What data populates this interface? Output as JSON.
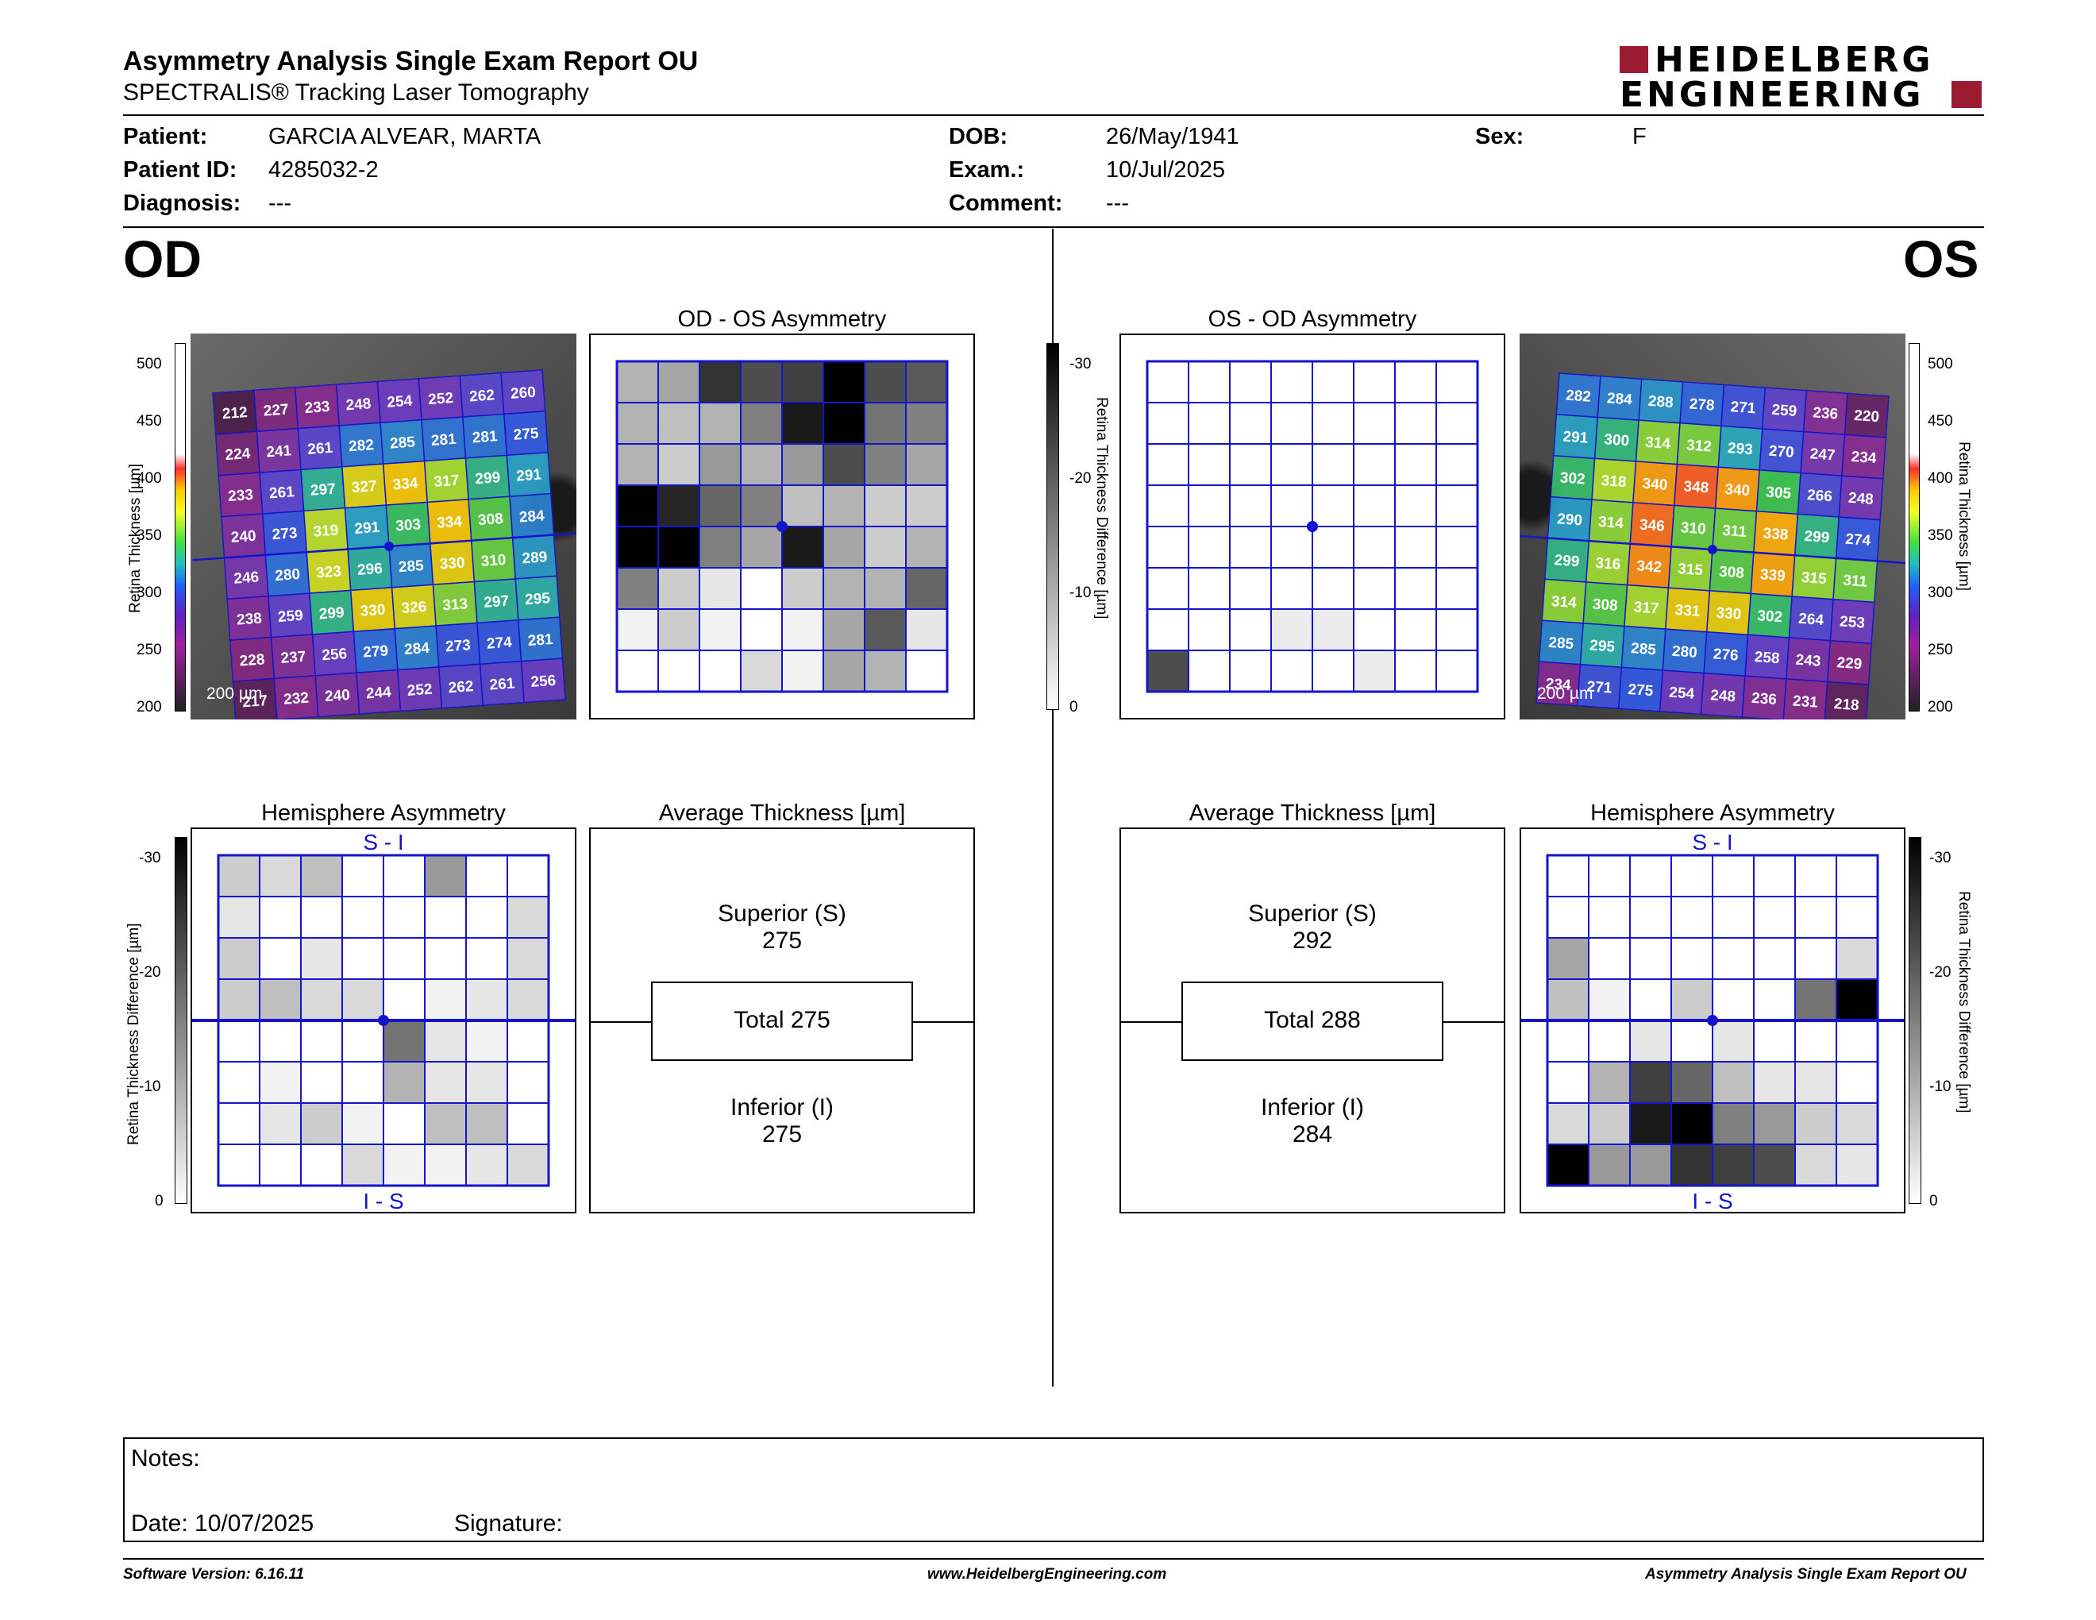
{
  "header": {
    "title": "Asymmetry Analysis Single Exam Report OU",
    "subtitle": "SPECTRALIS® Tracking Laser Tomography",
    "logo_line1": "HEIDELBERG",
    "logo_line2": "ENGINEERING"
  },
  "patient": {
    "patient_label": "Patient:",
    "patient_value": "GARCIA ALVEAR, MARTA",
    "id_label": "Patient ID:",
    "id_value": "4285032-2",
    "diagnosis_label": "Diagnosis:",
    "diagnosis_value": "---",
    "dob_label": "DOB:",
    "dob_value": "26/May/1941",
    "exam_label": "Exam.:",
    "exam_value": "10/Jul/2025",
    "comment_label": "Comment:",
    "comment_value": "---",
    "sex_label": "Sex:",
    "sex_value": "F"
  },
  "od": {
    "eye": "OD",
    "asym_title": "OD - OS Asymmetry",
    "hemi_title": "Hemisphere Asymmetry",
    "avg_title": "Average Thickness [µm]",
    "superior_label": "Superior (S)",
    "superior_value": "275",
    "total_label": "Total 275",
    "inferior_label": "Inferior (I)",
    "inferior_value": "275",
    "scale_bar": "200 µm",
    "thickness_grid": [
      [
        212,
        227,
        233,
        248,
        254,
        252,
        262,
        260
      ],
      [
        224,
        241,
        261,
        282,
        285,
        281,
        281,
        275
      ],
      [
        233,
        261,
        297,
        327,
        334,
        317,
        299,
        291
      ],
      [
        240,
        273,
        319,
        291,
        303,
        334,
        308,
        284
      ],
      [
        246,
        280,
        323,
        296,
        285,
        330,
        310,
        289
      ],
      [
        238,
        259,
        299,
        330,
        326,
        313,
        297,
        295
      ],
      [
        228,
        237,
        256,
        279,
        284,
        273,
        274,
        281
      ],
      [
        217,
        232,
        240,
        244,
        252,
        262,
        261,
        256
      ]
    ],
    "asym_grid": [
      [
        0.3,
        0.35,
        0.8,
        0.7,
        0.75,
        1.0,
        0.7,
        0.65
      ],
      [
        0.3,
        0.25,
        0.3,
        0.5,
        0.9,
        1.0,
        0.55,
        0.5
      ],
      [
        0.3,
        0.2,
        0.4,
        0.3,
        0.4,
        0.7,
        0.5,
        0.35
      ],
      [
        1.0,
        0.85,
        0.6,
        0.5,
        0.25,
        0.3,
        0.2,
        0.2
      ],
      [
        1.0,
        1.0,
        0.5,
        0.35,
        0.9,
        0.35,
        0.2,
        0.3
      ],
      [
        0.5,
        0.2,
        0.1,
        0.0,
        0.2,
        0.3,
        0.3,
        0.6
      ],
      [
        0.05,
        0.2,
        0.05,
        0.0,
        0.05,
        0.35,
        0.65,
        0.1
      ],
      [
        0.0,
        0.0,
        0.0,
        0.15,
        0.05,
        0.35,
        0.3,
        0.0
      ]
    ],
    "hemi_grid": [
      [
        0.2,
        0.15,
        0.25,
        0.0,
        0.0,
        0.4,
        0.0,
        0.0
      ],
      [
        0.1,
        0.0,
        0.0,
        0.0,
        0.0,
        0.0,
        0.0,
        0.15
      ],
      [
        0.2,
        0.0,
        0.1,
        0.0,
        0.0,
        0.0,
        0.0,
        0.15
      ],
      [
        0.2,
        0.25,
        0.15,
        0.15,
        0.0,
        0.05,
        0.1,
        0.15
      ],
      [
        0.0,
        0.0,
        0.0,
        0.0,
        0.55,
        0.1,
        0.05,
        0.0
      ],
      [
        0.0,
        0.05,
        0.0,
        0.0,
        0.3,
        0.1,
        0.1,
        0.0
      ],
      [
        0.0,
        0.1,
        0.2,
        0.05,
        0.0,
        0.25,
        0.25,
        0.0
      ],
      [
        0.0,
        0.0,
        0.0,
        0.15,
        0.05,
        0.05,
        0.1,
        0.15
      ]
    ]
  },
  "os": {
    "eye": "OS",
    "asym_title": "OS - OD Asymmetry",
    "hemi_title": "Hemisphere Asymmetry",
    "avg_title": "Average Thickness [µm]",
    "superior_label": "Superior (S)",
    "superior_value": "292",
    "total_label": "Total 288",
    "inferior_label": "Inferior (I)",
    "inferior_value": "284",
    "scale_bar": "200 µm",
    "thickness_grid": [
      [
        282,
        284,
        288,
        278,
        271,
        259,
        236,
        220
      ],
      [
        291,
        300,
        314,
        312,
        293,
        270,
        247,
        234
      ],
      [
        302,
        318,
        340,
        348,
        340,
        305,
        266,
        248
      ],
      [
        290,
        314,
        346,
        310,
        311,
        338,
        299,
        274
      ],
      [
        299,
        316,
        342,
        315,
        308,
        339,
        315,
        311
      ],
      [
        314,
        308,
        317,
        331,
        330,
        302,
        264,
        253
      ],
      [
        285,
        295,
        285,
        280,
        276,
        258,
        243,
        229
      ],
      [
        234,
        271,
        275,
        254,
        248,
        236,
        231,
        218
      ]
    ],
    "asym_grid": [
      [
        0,
        0,
        0,
        0,
        0,
        0,
        0,
        0
      ],
      [
        0,
        0,
        0,
        0,
        0,
        0,
        0,
        0
      ],
      [
        0,
        0,
        0,
        0,
        0,
        0,
        0,
        0
      ],
      [
        0,
        0,
        0,
        0,
        0,
        0,
        0,
        0
      ],
      [
        0,
        0,
        0,
        0,
        0,
        0,
        0,
        0
      ],
      [
        0,
        0,
        0,
        0,
        0,
        0,
        0,
        0
      ],
      [
        0,
        0,
        0,
        0.08,
        0.08,
        0,
        0,
        0
      ],
      [
        0.7,
        0,
        0,
        0,
        0,
        0.08,
        0,
        0
      ]
    ],
    "hemi_grid": [
      [
        0,
        0,
        0,
        0,
        0,
        0,
        0,
        0
      ],
      [
        0,
        0,
        0,
        0,
        0,
        0,
        0,
        0
      ],
      [
        0.35,
        0,
        0,
        0,
        0,
        0,
        0,
        0.15
      ],
      [
        0.25,
        0.05,
        0,
        0.2,
        0.0,
        0.0,
        0.55,
        1.0
      ],
      [
        0,
        0,
        0.1,
        0,
        0.1,
        0,
        0,
        0
      ],
      [
        0,
        0.3,
        0.75,
        0.6,
        0.25,
        0.1,
        0.1,
        0
      ],
      [
        0.15,
        0.2,
        0.9,
        1.0,
        0.5,
        0.4,
        0.2,
        0.15
      ],
      [
        1.0,
        0.4,
        0.4,
        0.8,
        0.75,
        0.7,
        0.15,
        0.1
      ]
    ]
  },
  "scales": {
    "thickness_label": "Retina  Thickness [µm]",
    "thickness_ticks": [
      "500",
      "450",
      "400",
      "350",
      "300",
      "250",
      "200"
    ],
    "difference_label": "Retina Thickness Difference [µm]",
    "difference_ticks_center": [
      "-30",
      "-20",
      "-10",
      "0"
    ],
    "difference_ticks_hemi": [
      "-30",
      "-20",
      "-10",
      "0"
    ],
    "si": "S - I",
    "is": "I - S"
  },
  "notes": {
    "notes_label": "Notes:",
    "date_label": "Date: 10/07/2025",
    "signature_label": "Signature:"
  },
  "footer": {
    "software": "Software Version: 6.16.11",
    "website": "www.HeidelbergEngineering.com",
    "report": "Asymmetry Analysis Single Exam Report OU"
  },
  "colors": {
    "grid_blue": "#1414cc",
    "logo_red": "#9b1b30"
  }
}
